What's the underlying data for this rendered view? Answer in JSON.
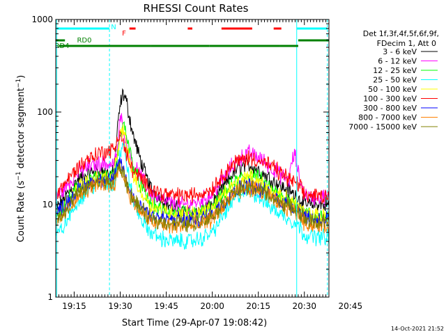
{
  "chart_data": {
    "type": "line",
    "title": "RHESSI Count Rates",
    "xlabel": "Start Time (29-Apr-07 19:08:42)",
    "ylabel_prefix": "Count Rate (s",
    "ylabel_sup": "−1",
    "ylabel_mid": " detector segment",
    "ylabel_suffix": ")",
    "y_scale": "log",
    "ylim": [
      1,
      1000
    ],
    "y_ticks": [
      {
        "value": 1,
        "label": "1"
      },
      {
        "value": 10,
        "label": "10"
      },
      {
        "value": 100,
        "label": "100"
      },
      {
        "value": 1000,
        "label": "1000"
      }
    ],
    "xlim_minutes": [
      9,
      98
    ],
    "x_ticks": [
      {
        "minute": 15,
        "label": "19:15"
      },
      {
        "minute": 30,
        "label": "19:30"
      },
      {
        "minute": 45,
        "label": "19:45"
      },
      {
        "minute": 60,
        "label": "20:00"
      },
      {
        "minute": 75,
        "label": "20:15"
      },
      {
        "minute": 90,
        "label": "20:30"
      },
      {
        "minute": 105,
        "label": "20:45"
      }
    ],
    "footer_stamp": "14-Oct-2021 21:52",
    "legend_header": [
      "Det 1f,3f,4f,5f,6f,9f,",
      "FDecim 1, Att 0"
    ],
    "series": [
      {
        "name": "3 - 6 keV",
        "color": "#000000",
        "x": [
          9,
          12,
          16,
          20,
          24,
          27,
          28,
          29,
          30,
          31,
          32,
          33,
          34,
          36,
          38,
          40,
          44,
          48,
          52,
          56,
          60,
          64,
          66,
          68,
          70,
          72,
          74,
          76,
          78,
          80,
          82,
          85,
          88,
          90,
          92,
          96,
          98
        ],
        "y": [
          9,
          12,
          18,
          22,
          23,
          21,
          22,
          60,
          120,
          160,
          130,
          90,
          60,
          35,
          22,
          15,
          11,
          9,
          8,
          8.5,
          10,
          16,
          20,
          24,
          26,
          27,
          25,
          22,
          20,
          18,
          16,
          14,
          12,
          10,
          10,
          10,
          10
        ]
      },
      {
        "name": "6 - 12 keV",
        "color": "#ff00ff",
        "x": [
          9,
          12,
          16,
          20,
          24,
          27,
          28,
          29,
          30,
          31,
          32,
          33,
          34,
          36,
          38,
          40,
          44,
          48,
          52,
          56,
          60,
          64,
          66,
          68,
          70,
          72,
          74,
          76,
          78,
          80,
          82,
          85,
          86,
          87,
          88,
          90,
          92,
          96,
          98
        ],
        "y": [
          12,
          15,
          22,
          26,
          28,
          27,
          28,
          35,
          90,
          70,
          45,
          35,
          28,
          22,
          17,
          13,
          11,
          10,
          10,
          11,
          13,
          20,
          25,
          30,
          33,
          36,
          34,
          31,
          27,
          24,
          21,
          18,
          30,
          34,
          22,
          13,
          12,
          12,
          12
        ]
      },
      {
        "name": "12 - 25 keV",
        "color": "#00ff00",
        "x": [
          9,
          12,
          16,
          20,
          24,
          27,
          28,
          29,
          30,
          31,
          32,
          33,
          34,
          36,
          38,
          40,
          44,
          48,
          52,
          56,
          60,
          64,
          66,
          68,
          70,
          72,
          74,
          76,
          78,
          80,
          82,
          85,
          88,
          90,
          92,
          96,
          98
        ],
        "y": [
          8,
          10,
          15,
          18,
          20,
          19,
          20,
          30,
          55,
          75,
          60,
          40,
          28,
          18,
          13,
          10,
          8.5,
          8,
          8,
          8,
          9,
          13,
          16,
          18,
          20,
          21,
          20,
          18,
          16,
          14,
          12,
          11,
          10,
          8,
          7.5,
          7.5,
          7.5
        ]
      },
      {
        "name": "25 - 50 keV",
        "color": "#00ffff",
        "x": [
          9,
          12,
          16,
          20,
          24,
          27,
          28,
          29,
          30,
          31,
          32,
          33,
          34,
          36,
          38,
          40,
          44,
          48,
          52,
          56,
          60,
          64,
          66,
          68,
          70,
          72,
          74,
          76,
          78,
          80,
          82,
          85,
          88,
          90,
          92,
          96,
          98
        ],
        "y": [
          4.5,
          6,
          11,
          15,
          18,
          16,
          17,
          25,
          35,
          45,
          30,
          18,
          12,
          8,
          6,
          5,
          4.2,
          4,
          4,
          4.2,
          5,
          8,
          10,
          12,
          13.5,
          14,
          13,
          11.5,
          10,
          9,
          8,
          7,
          6,
          4.8,
          4.5,
          4.5,
          4.5
        ]
      },
      {
        "name": "50 - 100 keV",
        "color": "#ffff00",
        "x": [
          9,
          12,
          16,
          20,
          24,
          27,
          28,
          29,
          30,
          31,
          32,
          33,
          34,
          36,
          38,
          40,
          44,
          48,
          52,
          56,
          60,
          64,
          66,
          68,
          70,
          72,
          74,
          76,
          78,
          80,
          82,
          85,
          88,
          90,
          92,
          96,
          98
        ],
        "y": [
          8,
          10,
          15,
          18,
          20,
          19,
          20,
          35,
          55,
          65,
          45,
          30,
          22,
          15,
          12,
          10,
          8.5,
          8,
          8,
          8,
          9,
          13,
          15,
          17,
          19,
          20,
          19,
          17,
          15,
          13,
          12,
          11,
          10,
          8,
          7.5,
          7.5,
          7.5
        ]
      },
      {
        "name": "100 - 300 keV",
        "color": "#ff0000",
        "x": [
          9,
          12,
          16,
          20,
          24,
          27,
          28,
          29,
          30,
          31,
          32,
          33,
          34,
          36,
          38,
          40,
          44,
          48,
          52,
          56,
          60,
          64,
          66,
          68,
          70,
          72,
          74,
          76,
          78,
          80,
          82,
          85,
          88,
          90,
          92,
          96,
          98
        ],
        "y": [
          13,
          17,
          25,
          32,
          37,
          38,
          40,
          50,
          60,
          45,
          35,
          28,
          24,
          20,
          17,
          15,
          13,
          12.5,
          12.5,
          13,
          15,
          22,
          26,
          29,
          31,
          32,
          31,
          29,
          27,
          25,
          22,
          19,
          16,
          13,
          12.5,
          12.5,
          13
        ]
      },
      {
        "name": "300 - 800 keV",
        "color": "#0000ff",
        "x": [
          9,
          12,
          16,
          20,
          24,
          27,
          28,
          29,
          30,
          31,
          32,
          33,
          34,
          36,
          38,
          40,
          44,
          48,
          52,
          56,
          60,
          64,
          66,
          68,
          70,
          72,
          74,
          76,
          78,
          80,
          82,
          85,
          88,
          90,
          92,
          96,
          98
        ],
        "y": [
          8,
          10,
          14,
          17,
          19,
          18,
          19,
          24,
          30,
          24,
          18,
          14,
          12,
          10,
          9,
          8,
          7,
          6.8,
          6.8,
          7,
          8,
          11,
          13,
          14.5,
          15.5,
          16,
          15.5,
          14.5,
          13.5,
          12,
          11,
          10,
          9,
          7.5,
          7,
          7,
          7
        ]
      },
      {
        "name": "800 - 7000 keV",
        "color": "#ff8000",
        "x": [
          9,
          12,
          16,
          20,
          24,
          27,
          28,
          29,
          30,
          31,
          32,
          33,
          34,
          36,
          38,
          40,
          44,
          48,
          52,
          56,
          60,
          64,
          66,
          68,
          70,
          72,
          74,
          76,
          78,
          80,
          82,
          85,
          88,
          90,
          92,
          96,
          98
        ],
        "y": [
          6,
          8,
          12,
          15,
          17,
          16,
          17,
          21,
          25,
          20,
          16,
          13,
          11,
          9,
          7.5,
          6.5,
          6,
          5.8,
          5.8,
          6,
          7,
          10,
          12,
          13.5,
          14.5,
          15,
          14.5,
          13.5,
          12.5,
          11,
          10,
          9,
          8,
          6.5,
          6,
          6,
          6
        ]
      },
      {
        "name": "7000 - 15000 keV",
        "color": "#808000",
        "x": [
          9,
          12,
          16,
          20,
          24,
          27,
          28,
          29,
          30,
          31,
          32,
          33,
          34,
          36,
          38,
          40,
          44,
          48,
          52,
          56,
          60,
          64,
          66,
          68,
          70,
          72,
          74,
          76,
          78,
          80,
          82,
          85,
          88,
          90,
          92,
          96,
          98
        ],
        "y": [
          6.5,
          8.5,
          13,
          16,
          18,
          17,
          18,
          22,
          26,
          21,
          17,
          14,
          12,
          9.5,
          8,
          7,
          6.5,
          6.2,
          6.2,
          6.5,
          7.5,
          10.5,
          12.5,
          14,
          15,
          15.5,
          15,
          14,
          13,
          11.5,
          10.5,
          9.5,
          8.5,
          7,
          6.5,
          6.5,
          6.5
        ]
      }
    ],
    "vertical_markers": [
      {
        "minute": 9.3,
        "style": "solid"
      },
      {
        "minute": 26.5,
        "style": "dashed"
      },
      {
        "minute": 87.5,
        "style": "solid"
      },
      {
        "minute": 97.5,
        "style": "dashed"
      }
    ],
    "flag_bars": [
      {
        "label": "N",
        "color": "#00ffff",
        "level": "top",
        "segments": [
          [
            9.3,
            26.5
          ],
          [
            87.5,
            97.5
          ]
        ]
      },
      {
        "label": "F",
        "color": "#ff0000",
        "level": "top",
        "segments": [
          [
            33,
            35
          ],
          [
            52,
            53.5
          ],
          [
            63,
            73
          ],
          [
            80,
            82.5
          ]
        ]
      },
      {
        "label": "RD0",
        "color": "#008000",
        "level": "mid",
        "segments": [
          [
            9,
            12
          ],
          [
            88,
            98
          ]
        ]
      },
      {
        "label": "RD4",
        "color": "#008000",
        "level": "low",
        "segments": [
          [
            10,
            40
          ],
          [
            40,
            59
          ],
          [
            59,
            82
          ],
          [
            82,
            88
          ]
        ]
      }
    ]
  }
}
